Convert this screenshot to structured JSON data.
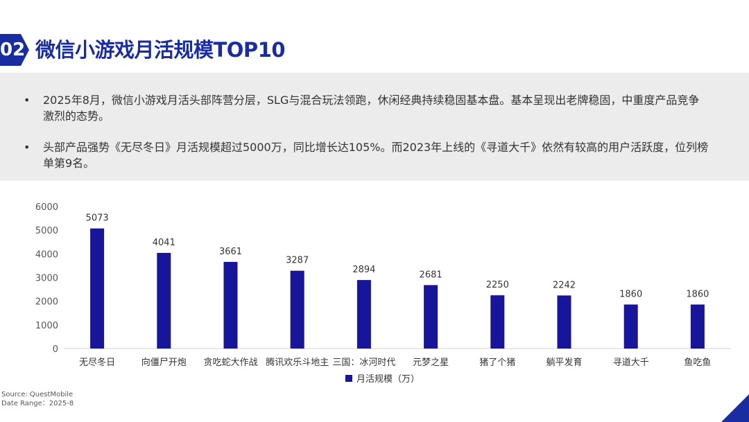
{
  "header": {
    "badge": "02",
    "title": "微信小游戏月活规模TOP10"
  },
  "summary": {
    "bullets": [
      "2025年8月，微信小游戏月活头部阵营分层，SLG与混合玩法领跑，休闲经典持续稳固基本盘。基本呈现出老牌稳固，中重度产品竞争激烈的态势。",
      "头部产品强势《无尽冬日》月活规模超过5000万，同比增长达105%。而2023年上线的《寻道大千》依然有较高的用户活跃度，位列榜单第9名。"
    ],
    "bullet_symbol": "•"
  },
  "chart_data": {
    "type": "bar",
    "categories": [
      "无尽冬日",
      "向僵尸开炮",
      "贪吃蛇大作战",
      "腾讯欢乐斗地主",
      "三国：冰河时代",
      "元梦之星",
      "猪了个猪",
      "躺平发育",
      "寻道大千",
      "鱼吃鱼"
    ],
    "series": [
      {
        "name": "月活规模（万）",
        "values": [
          5073,
          4041,
          3661,
          3287,
          2894,
          2681,
          2250,
          2242,
          1860,
          1860
        ]
      }
    ],
    "ylim": [
      0,
      6000
    ],
    "yticks": [
      0,
      1000,
      2000,
      3000,
      4000,
      5000,
      6000
    ],
    "grid": false,
    "legend_position": "bottom",
    "bar_color": "#17169b"
  },
  "footer": {
    "source": "Source: QuestMobile",
    "date_range": "Date Range：2025-8"
  },
  "colors": {
    "accent": "#1a2da0",
    "bar": "#17169b",
    "summary_bg": "#ececec"
  }
}
